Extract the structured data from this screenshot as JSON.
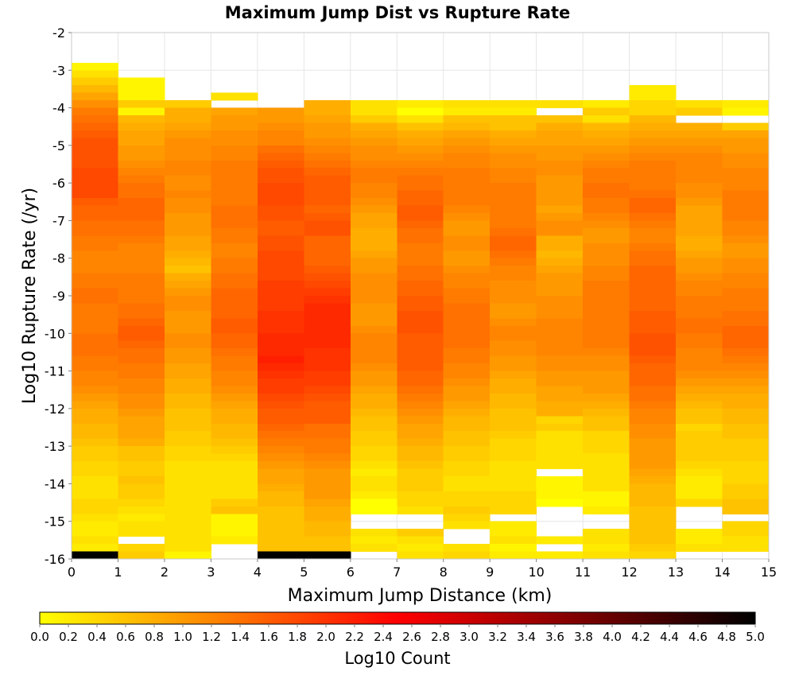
{
  "chart_data": {
    "type": "heatmap",
    "title": "Maximum Jump Dist vs Rupture Rate",
    "xlabel": "Maximum Jump Distance (km)",
    "ylabel": "Log10 Rupture Rate (/yr)",
    "xlim": [
      0,
      15
    ],
    "ylim": [
      -16,
      -2
    ],
    "x_ticks": [
      "0",
      "1",
      "2",
      "3",
      "4",
      "5",
      "6",
      "7",
      "8",
      "9",
      "10",
      "11",
      "12",
      "13",
      "14",
      "15"
    ],
    "y_ticks": [
      "-2",
      "-3",
      "-4",
      "-5",
      "-6",
      "-7",
      "-8",
      "-9",
      "-10",
      "-11",
      "-12",
      "-13",
      "-14",
      "-15",
      "-16"
    ],
    "grid": true,
    "x_bin_width": 1,
    "y_bin_width": 0.2,
    "x_bin_starts": [
      0,
      1,
      2,
      3,
      4,
      5,
      6,
      7,
      8,
      9,
      10,
      11,
      12,
      13,
      14
    ],
    "y_bin_centers_top_to_bottom": [
      -2.9,
      -3.1,
      -3.3,
      -3.5,
      -3.7,
      -3.9,
      -4.1,
      -4.3,
      -4.5,
      -4.7,
      -4.9,
      -5.1,
      -5.3,
      -5.5,
      -5.7,
      -5.9,
      -6.1,
      -6.3,
      -6.5,
      -6.7,
      -6.9,
      -7.1,
      -7.3,
      -7.5,
      -7.7,
      -7.9,
      -8.1,
      -8.3,
      -8.5,
      -8.7,
      -8.9,
      -9.1,
      -9.3,
      -9.5,
      -9.7,
      -9.9,
      -10.1,
      -10.3,
      -10.5,
      -10.7,
      -10.9,
      -11.1,
      -11.3,
      -11.5,
      -11.7,
      -11.9,
      -12.1,
      -12.3,
      -12.5,
      -12.7,
      -12.9,
      -13.1,
      -13.3,
      -13.5,
      -13.7,
      -13.9,
      -14.1,
      -14.3,
      -14.5,
      -14.7,
      -14.9,
      -15.1,
      -15.3,
      -15.5,
      -15.7,
      -15.9
    ],
    "z_note_null": "empty bin",
    "z_columns_log10_count": [
      [
        0.1,
        0.3,
        0.5,
        0.7,
        0.9,
        1.1,
        1.3,
        1.4,
        1.5,
        1.6,
        1.7,
        1.7,
        1.7,
        1.7,
        1.8,
        1.8,
        1.8,
        1.8,
        1.6,
        1.5,
        1.5,
        1.4,
        1.4,
        1.3,
        1.3,
        1.2,
        1.2,
        1.2,
        1.3,
        1.3,
        1.4,
        1.4,
        1.3,
        1.3,
        1.3,
        1.3,
        1.4,
        1.4,
        1.4,
        1.3,
        1.3,
        1.2,
        1.2,
        1.1,
        1.0,
        0.9,
        0.8,
        0.8,
        0.7,
        0.7,
        0.6,
        0.5,
        0.5,
        0.4,
        0.4,
        0.3,
        0.3,
        0.3,
        0.4,
        0.4,
        0.3,
        0.2,
        0.2,
        0.3,
        0.2,
        5.0
      ],
      [
        null,
        null,
        0.1,
        0.1,
        0.1,
        0.5,
        0.1,
        0.7,
        0.8,
        0.9,
        0.9,
        1.0,
        1.0,
        1.1,
        1.2,
        1.3,
        1.4,
        1.4,
        1.5,
        1.5,
        1.5,
        1.4,
        1.4,
        1.3,
        1.2,
        1.2,
        1.2,
        1.2,
        1.3,
        1.3,
        1.3,
        1.3,
        1.4,
        1.4,
        1.5,
        1.6,
        1.6,
        1.5,
        1.4,
        1.4,
        1.3,
        1.3,
        1.2,
        1.2,
        1.1,
        1.1,
        1.0,
        0.9,
        0.9,
        0.9,
        0.8,
        0.6,
        0.6,
        0.5,
        0.5,
        0.6,
        0.5,
        0.5,
        0.4,
        0.3,
        0.2,
        0.3,
        0.3,
        null,
        0.4,
        0.5
      ],
      [
        null,
        null,
        null,
        null,
        null,
        0.5,
        0.8,
        0.8,
        0.9,
        1.0,
        1.1,
        1.1,
        1.1,
        1.2,
        1.2,
        1.1,
        1.1,
        1.2,
        1.1,
        1.1,
        1.0,
        1.0,
        1.0,
        0.9,
        0.9,
        0.8,
        0.7,
        0.6,
        0.8,
        0.9,
        1.0,
        1.1,
        1.1,
        1.0,
        1.0,
        1.0,
        1.1,
        1.1,
        1.0,
        1.0,
        0.9,
        0.9,
        0.8,
        0.8,
        0.7,
        0.7,
        0.6,
        0.6,
        0.6,
        0.5,
        0.5,
        0.4,
        0.4,
        0.3,
        0.3,
        0.3,
        0.3,
        0.3,
        0.3,
        0.3,
        0.3,
        0.3,
        0.3,
        0.3,
        0.3,
        0.1
      ],
      [
        null,
        null,
        null,
        null,
        0.3,
        null,
        0.9,
        1.0,
        1.0,
        1.1,
        1.1,
        1.2,
        1.2,
        1.3,
        1.3,
        1.3,
        1.3,
        1.3,
        1.3,
        1.4,
        1.4,
        1.4,
        1.3,
        1.3,
        1.2,
        1.2,
        1.3,
        1.3,
        1.4,
        1.4,
        1.5,
        1.5,
        1.5,
        1.5,
        1.6,
        1.6,
        1.5,
        1.5,
        1.4,
        1.3,
        1.3,
        1.2,
        1.2,
        1.1,
        1.0,
        0.9,
        0.8,
        0.8,
        0.7,
        0.7,
        0.6,
        0.5,
        0.4,
        0.3,
        0.3,
        0.3,
        0.3,
        0.3,
        0.5,
        0.6,
        0.1,
        0.1,
        0.1,
        0.2,
        null,
        null
      ],
      [
        null,
        null,
        null,
        null,
        null,
        null,
        1.0,
        1.0,
        1.1,
        1.2,
        1.2,
        1.4,
        1.5,
        1.6,
        1.7,
        1.7,
        1.8,
        1.8,
        1.8,
        1.7,
        1.7,
        1.6,
        1.6,
        1.7,
        1.7,
        1.8,
        1.8,
        1.8,
        1.8,
        1.9,
        1.9,
        1.9,
        1.9,
        2.0,
        2.0,
        2.0,
        2.1,
        2.1,
        2.1,
        2.2,
        2.1,
        2.0,
        1.9,
        1.9,
        1.8,
        1.7,
        1.6,
        1.6,
        1.5,
        1.4,
        1.3,
        1.2,
        1.1,
        1.0,
        0.9,
        0.9,
        0.8,
        0.7,
        0.7,
        0.6,
        0.6,
        0.6,
        0.6,
        0.6,
        0.6,
        5.0
      ],
      [
        null,
        null,
        null,
        null,
        null,
        0.8,
        0.8,
        0.9,
        1.0,
        1.0,
        1.1,
        1.2,
        1.3,
        1.4,
        1.5,
        1.6,
        1.6,
        1.6,
        1.6,
        1.5,
        1.6,
        1.7,
        1.7,
        1.5,
        1.5,
        1.5,
        1.5,
        1.6,
        1.7,
        1.8,
        1.9,
        2.0,
        2.1,
        2.1,
        2.1,
        2.1,
        2.1,
        2.1,
        2.0,
        2.0,
        2.0,
        1.9,
        1.9,
        1.8,
        1.7,
        1.6,
        1.6,
        1.6,
        1.4,
        1.4,
        1.3,
        1.3,
        1.2,
        1.1,
        1.0,
        1.0,
        1.0,
        1.0,
        0.9,
        0.8,
        0.8,
        0.7,
        0.7,
        0.6,
        0.6,
        5.0
      ],
      [
        null,
        null,
        null,
        null,
        null,
        0.3,
        0.3,
        0.5,
        0.8,
        0.9,
        1.0,
        1.1,
        1.1,
        1.2,
        1.3,
        1.3,
        1.2,
        1.2,
        1.1,
        1.0,
        0.9,
        0.9,
        0.8,
        0.8,
        0.8,
        0.9,
        1.0,
        1.0,
        1.1,
        1.1,
        1.1,
        1.1,
        1.0,
        1.0,
        1.0,
        1.1,
        1.2,
        1.2,
        1.2,
        1.2,
        1.1,
        1.0,
        1.0,
        0.9,
        0.8,
        0.8,
        0.7,
        0.6,
        0.6,
        0.5,
        0.5,
        0.4,
        0.4,
        0.3,
        0.2,
        0.3,
        0.3,
        0.2,
        0.0,
        0.0,
        null,
        null,
        0.3,
        0.2,
        0.3,
        null
      ],
      [
        null,
        null,
        null,
        null,
        null,
        0.2,
        0.0,
        0.3,
        0.6,
        0.8,
        0.9,
        1.0,
        1.1,
        1.2,
        1.3,
        1.4,
        1.4,
        1.5,
        1.5,
        1.6,
        1.6,
        1.5,
        1.4,
        1.4,
        1.3,
        1.3,
        1.3,
        1.4,
        1.4,
        1.5,
        1.5,
        1.6,
        1.6,
        1.7,
        1.7,
        1.7,
        1.6,
        1.6,
        1.6,
        1.6,
        1.6,
        1.5,
        1.5,
        1.4,
        1.3,
        1.2,
        1.1,
        1.0,
        0.9,
        0.9,
        0.8,
        0.7,
        0.7,
        0.6,
        0.5,
        0.5,
        0.5,
        0.4,
        0.4,
        0.3,
        null,
        null,
        0.5,
        0.3,
        0.2,
        0.3
      ],
      [
        null,
        null,
        null,
        null,
        null,
        0.3,
        0.2,
        0.6,
        0.7,
        0.9,
        1.0,
        1.1,
        1.2,
        1.2,
        1.3,
        1.3,
        1.3,
        1.3,
        1.3,
        1.2,
        1.1,
        1.0,
        1.0,
        1.1,
        1.1,
        1.0,
        1.0,
        1.1,
        1.2,
        1.2,
        1.3,
        1.3,
        1.4,
        1.4,
        1.4,
        1.4,
        1.4,
        1.4,
        1.3,
        1.3,
        1.2,
        1.2,
        1.1,
        1.0,
        1.0,
        0.9,
        0.8,
        0.7,
        0.7,
        0.6,
        0.6,
        0.5,
        0.5,
        0.4,
        0.4,
        0.3,
        0.3,
        0.4,
        0.4,
        0.5,
        0.4,
        0.3,
        null,
        null,
        0.3,
        0.4
      ],
      [
        null,
        null,
        null,
        null,
        null,
        0.3,
        0.2,
        0.6,
        0.6,
        0.8,
        0.9,
        1.0,
        1.1,
        1.1,
        1.2,
        1.2,
        1.3,
        1.3,
        1.3,
        1.3,
        1.3,
        1.3,
        1.4,
        1.5,
        1.5,
        1.4,
        1.3,
        1.2,
        1.2,
        1.1,
        1.1,
        1.1,
        1.0,
        1.0,
        1.1,
        1.2,
        1.2,
        1.1,
        1.1,
        1.0,
        1.0,
        0.9,
        0.8,
        0.8,
        0.7,
        0.7,
        0.6,
        0.6,
        0.6,
        0.5,
        0.4,
        0.4,
        0.4,
        0.3,
        0.3,
        0.3,
        0.3,
        0.4,
        0.4,
        0.4,
        null,
        0.2,
        0.2,
        0.3,
        0.1,
        0.2
      ],
      [
        null,
        null,
        null,
        null,
        null,
        0.3,
        null,
        0.6,
        0.8,
        0.9,
        0.9,
        1.0,
        1.0,
        1.1,
        1.1,
        1.0,
        1.0,
        1.0,
        1.0,
        0.9,
        1.0,
        1.1,
        1.1,
        0.8,
        0.8,
        0.7,
        0.8,
        0.9,
        1.0,
        1.0,
        1.0,
        1.1,
        1.1,
        1.1,
        1.2,
        1.2,
        1.2,
        1.2,
        1.2,
        1.1,
        1.1,
        1.0,
        1.0,
        0.9,
        0.9,
        0.8,
        0.8,
        0.4,
        0.5,
        0.3,
        0.3,
        0.3,
        0.3,
        0.3,
        null,
        0.1,
        0.1,
        0.1,
        0.0,
        null,
        null,
        null,
        null,
        0.2,
        null,
        0.2
      ],
      [
        null,
        null,
        null,
        null,
        null,
        0.2,
        0.5,
        0.3,
        0.7,
        0.8,
        0.9,
        1.0,
        1.1,
        1.2,
        1.3,
        1.3,
        1.4,
        1.4,
        1.3,
        1.3,
        1.2,
        1.1,
        1.0,
        1.0,
        1.1,
        1.1,
        1.1,
        1.2,
        1.2,
        1.3,
        1.3,
        1.3,
        1.3,
        1.3,
        1.3,
        1.3,
        1.3,
        1.3,
        1.2,
        1.1,
        1.1,
        1.0,
        1.0,
        1.0,
        0.9,
        0.8,
        0.7,
        0.6,
        0.6,
        0.4,
        0.4,
        0.4,
        0.3,
        0.3,
        0.3,
        0.3,
        0.3,
        0.1,
        0.1,
        0.2,
        null,
        null,
        0.3,
        0.3,
        0.2,
        0.3
      ],
      [
        null,
        null,
        null,
        0.2,
        0.2,
        0.4,
        0.4,
        0.7,
        0.8,
        0.9,
        1.0,
        1.1,
        1.2,
        1.3,
        1.3,
        1.3,
        1.3,
        1.4,
        1.5,
        1.5,
        1.4,
        1.3,
        1.2,
        1.2,
        1.3,
        1.4,
        1.4,
        1.5,
        1.5,
        1.5,
        1.5,
        1.5,
        1.5,
        1.6,
        1.6,
        1.6,
        1.7,
        1.7,
        1.7,
        1.6,
        1.5,
        1.5,
        1.5,
        1.4,
        1.4,
        1.3,
        1.2,
        1.2,
        1.1,
        1.1,
        1.0,
        1.0,
        1.0,
        1.0,
        0.9,
        0.8,
        0.7,
        0.7,
        0.7,
        0.6,
        0.6,
        0.6,
        0.6,
        0.6,
        0.5,
        0.4
      ],
      [
        null,
        null,
        null,
        null,
        null,
        0.3,
        0.5,
        null,
        0.8,
        0.9,
        1.0,
        1.1,
        1.2,
        1.2,
        1.2,
        1.2,
        1.1,
        1.1,
        1.0,
        0.9,
        0.9,
        0.9,
        0.9,
        0.8,
        0.8,
        0.9,
        1.0,
        1.0,
        1.1,
        1.2,
        1.2,
        1.3,
        1.3,
        1.3,
        1.4,
        1.4,
        1.3,
        1.3,
        1.2,
        1.2,
        1.2,
        1.1,
        1.0,
        0.9,
        0.8,
        0.7,
        0.6,
        0.6,
        0.4,
        0.5,
        0.5,
        0.5,
        0.5,
        0.4,
        0.3,
        0.2,
        0.2,
        0.2,
        0.4,
        null,
        null,
        null,
        0.2,
        0.2,
        0.3,
        null
      ],
      [
        null,
        null,
        null,
        null,
        null,
        0.2,
        0.1,
        null,
        0.5,
        0.9,
        1.0,
        1.0,
        1.1,
        1.1,
        1.2,
        1.2,
        1.2,
        1.3,
        1.3,
        1.3,
        1.3,
        1.2,
        1.2,
        1.1,
        1.0,
        1.0,
        1.1,
        1.1,
        1.2,
        1.2,
        1.3,
        1.3,
        1.3,
        1.4,
        1.4,
        1.5,
        1.5,
        1.5,
        1.4,
        1.3,
        1.2,
        1.1,
        1.0,
        0.9,
        0.8,
        0.8,
        0.7,
        0.7,
        0.6,
        0.6,
        0.5,
        0.5,
        0.5,
        0.4,
        0.4,
        0.4,
        0.5,
        0.5,
        0.6,
        0.6,
        null,
        0.4,
        0.4,
        0.3,
        0.3,
        null
      ]
    ],
    "colorbar": {
      "title": "Log10 Count",
      "min": 0.0,
      "max": 5.0,
      "ticks": [
        "0.0",
        "0.2",
        "0.4",
        "0.6",
        "0.8",
        "1.0",
        "1.2",
        "1.4",
        "1.6",
        "1.8",
        "2.0",
        "2.2",
        "2.4",
        "2.6",
        "2.8",
        "3.0",
        "3.2",
        "3.4",
        "3.6",
        "3.8",
        "4.0",
        "4.2",
        "4.4",
        "4.6",
        "4.8",
        "5.0"
      ],
      "colors": [
        "#ffff00",
        "#ff8000",
        "#ff0000",
        "#800000",
        "#000000"
      ]
    }
  }
}
